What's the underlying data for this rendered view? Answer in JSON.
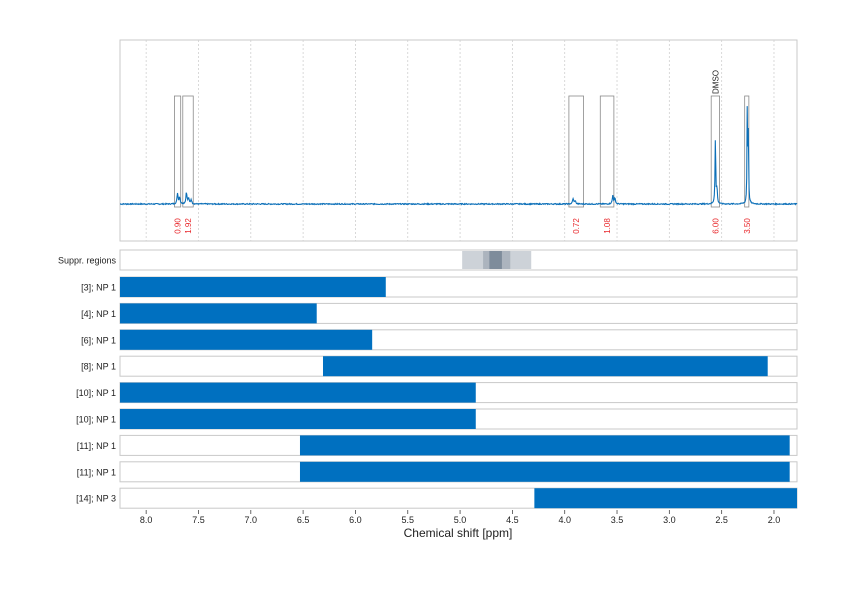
{
  "chart_data": {
    "type": "nmr-spectrum-with-range-bars",
    "xlabel": "Chemical shift [ppm]",
    "x_reversed": true,
    "xlim": [
      8.25,
      1.78
    ],
    "x_ticks": [
      8.0,
      7.5,
      7.0,
      6.5,
      6.0,
      5.5,
      5.0,
      4.5,
      4.0,
      3.5,
      3.0,
      2.5,
      2.0
    ],
    "grid": true,
    "colors": {
      "spectrum": "#0b6fb8",
      "bar": "#0070c0",
      "integral": "#e8262a",
      "box": "#8a8a8a"
    },
    "spectrum": {
      "baseline": 0.0,
      "noise": 0.01,
      "peaks": [
        {
          "ppm": 7.7,
          "height": 0.1,
          "width": 0.006
        },
        {
          "ppm": 7.68,
          "height": 0.06,
          "width": 0.006
        },
        {
          "ppm": 7.615,
          "height": 0.11,
          "width": 0.006
        },
        {
          "ppm": 7.595,
          "height": 0.05,
          "width": 0.006
        },
        {
          "ppm": 7.57,
          "height": 0.04,
          "width": 0.006
        },
        {
          "ppm": 3.92,
          "height": 0.05,
          "width": 0.006
        },
        {
          "ppm": 3.9,
          "height": 0.03,
          "width": 0.006
        },
        {
          "ppm": 3.54,
          "height": 0.08,
          "width": 0.006
        },
        {
          "ppm": 3.52,
          "height": 0.05,
          "width": 0.006
        },
        {
          "ppm": 2.56,
          "height": 0.62,
          "width": 0.004
        },
        {
          "ppm": 2.545,
          "height": 0.15,
          "width": 0.004
        },
        {
          "ppm": 2.255,
          "height": 0.95,
          "width": 0.003
        },
        {
          "ppm": 2.245,
          "height": 0.8,
          "width": 0.003
        }
      ]
    },
    "integrals": [
      {
        "from": 7.73,
        "to": 7.67,
        "label": "0.90"
      },
      {
        "from": 7.65,
        "to": 7.55,
        "label": "1.92"
      },
      {
        "from": 3.96,
        "to": 3.82,
        "label": "0.72"
      },
      {
        "from": 3.66,
        "to": 3.53,
        "label": "1.08"
      },
      {
        "from": 2.6,
        "to": 2.52,
        "label": "6.00"
      },
      {
        "from": 2.28,
        "to": 2.24,
        "label": "3.50"
      }
    ],
    "annotations": [
      {
        "ppm": 2.56,
        "text": "DMSO"
      }
    ],
    "suppression": {
      "label": "Suppr. regions",
      "regions": [
        {
          "from": 4.98,
          "to": 4.32,
          "opacity": 0.35
        },
        {
          "from": 4.78,
          "to": 4.52,
          "opacity": 0.35
        },
        {
          "from": 4.72,
          "to": 4.6,
          "opacity": 0.75
        }
      ]
    },
    "ranges": [
      {
        "label": "[3]; NP 1",
        "from": 8.25,
        "to": 5.71
      },
      {
        "label": "[4]; NP 1",
        "from": 8.25,
        "to": 6.37
      },
      {
        "label": "[6]; NP 1",
        "from": 8.25,
        "to": 5.84
      },
      {
        "label": "[8]; NP 1",
        "from": 6.31,
        "to": 2.06
      },
      {
        "label": "[10]; NP 1",
        "from": 8.25,
        "to": 4.85
      },
      {
        "label": "[10]; NP 1",
        "from": 8.25,
        "to": 4.85
      },
      {
        "label": "[11]; NP 1",
        "from": 6.53,
        "to": 1.85
      },
      {
        "label": "[11]; NP 1",
        "from": 6.53,
        "to": 1.85
      },
      {
        "label": "[14]; NP 3",
        "from": 4.29,
        "to": 1.78
      }
    ]
  }
}
